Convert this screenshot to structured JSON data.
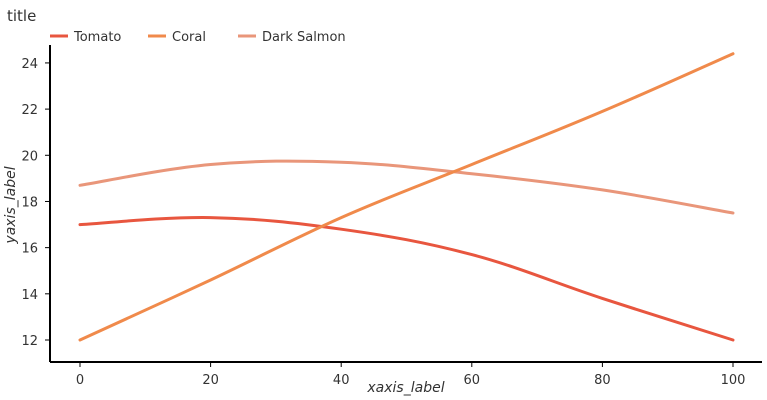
{
  "chart_data": {
    "type": "line",
    "title": "title",
    "xlabel": "xaxis_label",
    "ylabel": "yaxis_label",
    "xlim": [
      0,
      100
    ],
    "ylim": [
      12,
      25
    ],
    "x_ticks": [
      0,
      20,
      40,
      60,
      80,
      100
    ],
    "y_ticks": [
      12,
      14,
      16,
      18,
      20,
      22,
      24
    ],
    "grid": false,
    "legend_position": "top-left",
    "series": [
      {
        "name": "Tomato",
        "color": "#e8563f",
        "x": [
          0,
          20,
          40,
          60,
          80,
          100
        ],
        "y": [
          17.0,
          17.3,
          16.8,
          15.7,
          13.8,
          12.0
        ]
      },
      {
        "name": "Coral",
        "color": "#f08a4b",
        "x": [
          0,
          20,
          40,
          60,
          80,
          100
        ],
        "y": [
          12.0,
          14.6,
          17.3,
          19.6,
          21.9,
          24.4
        ]
      },
      {
        "name": "Dark Salmon",
        "color": "#e9967a",
        "x": [
          0,
          20,
          40,
          60,
          80,
          100
        ],
        "y": [
          18.7,
          19.6,
          19.7,
          19.2,
          18.5,
          17.5
        ]
      }
    ]
  }
}
